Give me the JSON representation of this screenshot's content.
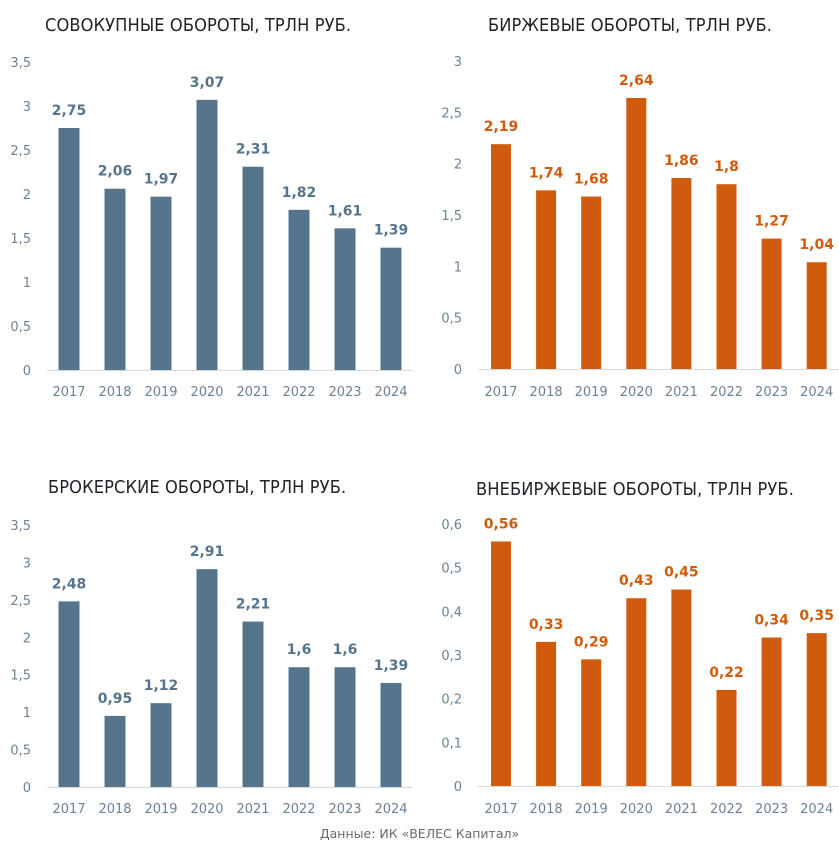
{
  "colors": {
    "slate": "#56758d",
    "orange": "#d15b0c",
    "tick_text": "#6b8296",
    "axis_line": "#d9d9d9",
    "title_text": "#1f2329"
  },
  "source": "Данные: ИК «ВЕЛЕС Капитал»",
  "chart_data": [
    {
      "type": "bar",
      "title": "СОВОКУПНЫЕ ОБОРОТЫ, ТРЛН РУБ.",
      "xlabel": "",
      "ylabel": "",
      "categories": [
        "2017",
        "2018",
        "2019",
        "2020",
        "2021",
        "2022",
        "2023",
        "2024"
      ],
      "values": [
        2.75,
        2.06,
        1.97,
        3.07,
        2.31,
        1.82,
        1.61,
        1.39
      ],
      "labels": [
        "2,75",
        "2,06",
        "1,97",
        "3,07",
        "2,31",
        "1,82",
        "1,61",
        "1,39"
      ],
      "ylim": [
        0,
        3.5
      ],
      "yticks": [
        0,
        0.5,
        1,
        1.5,
        2,
        2.5,
        3,
        3.5
      ],
      "ytick_labels": [
        "0",
        "0,5",
        "1",
        "1,5",
        "2",
        "2,5",
        "3",
        "3,5"
      ],
      "color": "#56758d",
      "grid": false,
      "legend": "none"
    },
    {
      "type": "bar",
      "title": "БИРЖЕВЫЕ ОБОРОТЫ, ТРЛН РУБ.",
      "xlabel": "",
      "ylabel": "",
      "categories": [
        "2017",
        "2018",
        "2019",
        "2020",
        "2021",
        "2022",
        "2023",
        "2024"
      ],
      "values": [
        2.19,
        1.74,
        1.68,
        2.64,
        1.86,
        1.8,
        1.27,
        1.04
      ],
      "labels": [
        "2,19",
        "1,74",
        "1,68",
        "2,64",
        "1,86",
        "1,8",
        "1,27",
        "1,04"
      ],
      "ylim": [
        0,
        3
      ],
      "yticks": [
        0,
        0.5,
        1,
        1.5,
        2,
        2.5,
        3
      ],
      "ytick_labels": [
        "0",
        "0,5",
        "1",
        "1,5",
        "2",
        "2,5",
        "3"
      ],
      "color": "#d15b0c",
      "grid": false,
      "legend": "none"
    },
    {
      "type": "bar",
      "title": "БРОКЕРСКИЕ ОБОРОТЫ, ТРЛН РУБ.",
      "xlabel": "",
      "ylabel": "",
      "categories": [
        "2017",
        "2018",
        "2019",
        "2020",
        "2021",
        "2022",
        "2023",
        "2024"
      ],
      "values": [
        2.48,
        0.95,
        1.12,
        2.91,
        2.21,
        1.6,
        1.6,
        1.39
      ],
      "labels": [
        "2,48",
        "0,95",
        "1,12",
        "2,91",
        "2,21",
        "1,6",
        "1,6",
        "1,39"
      ],
      "ylim": [
        0,
        3.5
      ],
      "yticks": [
        0,
        0.5,
        1,
        1.5,
        2,
        2.5,
        3,
        3.5
      ],
      "ytick_labels": [
        "0",
        "0,5",
        "1",
        "1,5",
        "2",
        "2,5",
        "3",
        "3,5"
      ],
      "color": "#56758d",
      "grid": false,
      "legend": "none"
    },
    {
      "type": "bar",
      "title": "ВНЕБИРЖЕВЫЕ ОБОРОТЫ, ТРЛН РУБ.",
      "xlabel": "",
      "ylabel": "",
      "categories": [
        "2017",
        "2018",
        "2019",
        "2020",
        "2021",
        "2022",
        "2023",
        "2024"
      ],
      "values": [
        0.56,
        0.33,
        0.29,
        0.43,
        0.45,
        0.22,
        0.34,
        0.35
      ],
      "labels": [
        "0,56",
        "0,33",
        "0,29",
        "0,43",
        "0,45",
        "0,22",
        "0,34",
        "0,35"
      ],
      "ylim": [
        0,
        0.6
      ],
      "yticks": [
        0,
        0.1,
        0.2,
        0.3,
        0.4,
        0.5,
        0.6
      ],
      "ytick_labels": [
        "0",
        "0,1",
        "0,2",
        "0,3",
        "0,4",
        "0,5",
        "0,6"
      ],
      "color": "#d15b0c",
      "grid": false,
      "legend": "none"
    }
  ]
}
